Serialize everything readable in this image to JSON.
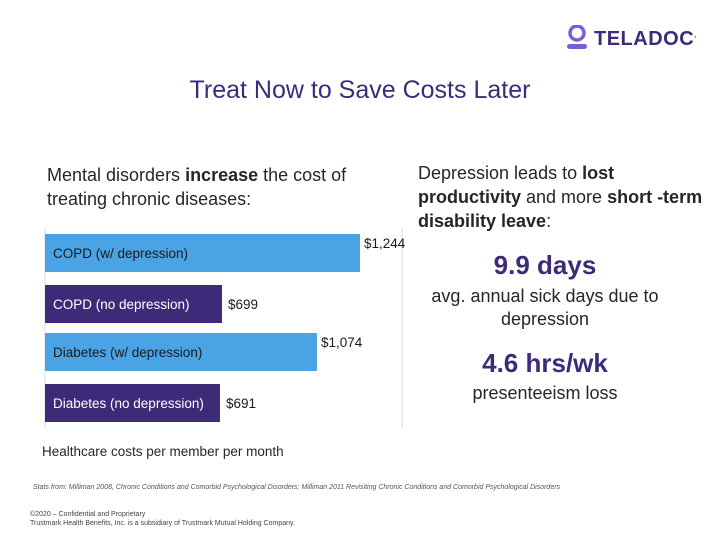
{
  "logo": {
    "text": "TELADOC",
    "mark": "."
  },
  "title": "Treat Now to Save Costs Later",
  "left_intro": {
    "pre": "Mental disorders ",
    "bold": "increase",
    "post": " the cost of treating chronic diseases:"
  },
  "right_intro": {
    "part1": "Depression leads to ",
    "bold1": "lost productivity",
    "part2": " and more ",
    "bold2": "short -term disability leave",
    "part3": ":"
  },
  "stats": [
    {
      "value": "9.9 days",
      "label": "avg. annual sick days due to depression"
    },
    {
      "value": "4.6 hrs/wk",
      "label": "presenteeism loss"
    }
  ],
  "chart_data": {
    "type": "bar",
    "orientation": "horizontal",
    "categories": [
      "COPD (w/ depression)",
      "COPD (no depression)",
      "Diabetes (w/ depression)",
      "Diabetes (no depression)"
    ],
    "values": [
      1244,
      699,
      1074,
      691
    ],
    "value_labels": [
      "$1,244",
      "$699",
      "$1,074",
      "$691"
    ],
    "xlim": [
      0,
      1300
    ],
    "xlabel": "Healthcare costs per member per month",
    "colors": {
      "w_depression": "#4aa3e5",
      "no_depression": "#3d2b7a"
    }
  },
  "source": "Stats from: Milliman 2008, Chronic Conditions and Comorbid Psychological Disorders; Milliman 2011 Revisiting Chronic Conditions and Comorbid Psychological Disorders",
  "footer": {
    "line1": "©2020 – Confidential and Proprietary",
    "line2": "Trustmark Health Benefits, Inc. is a subsidiary of Trustmark Mutual Holding Company."
  }
}
